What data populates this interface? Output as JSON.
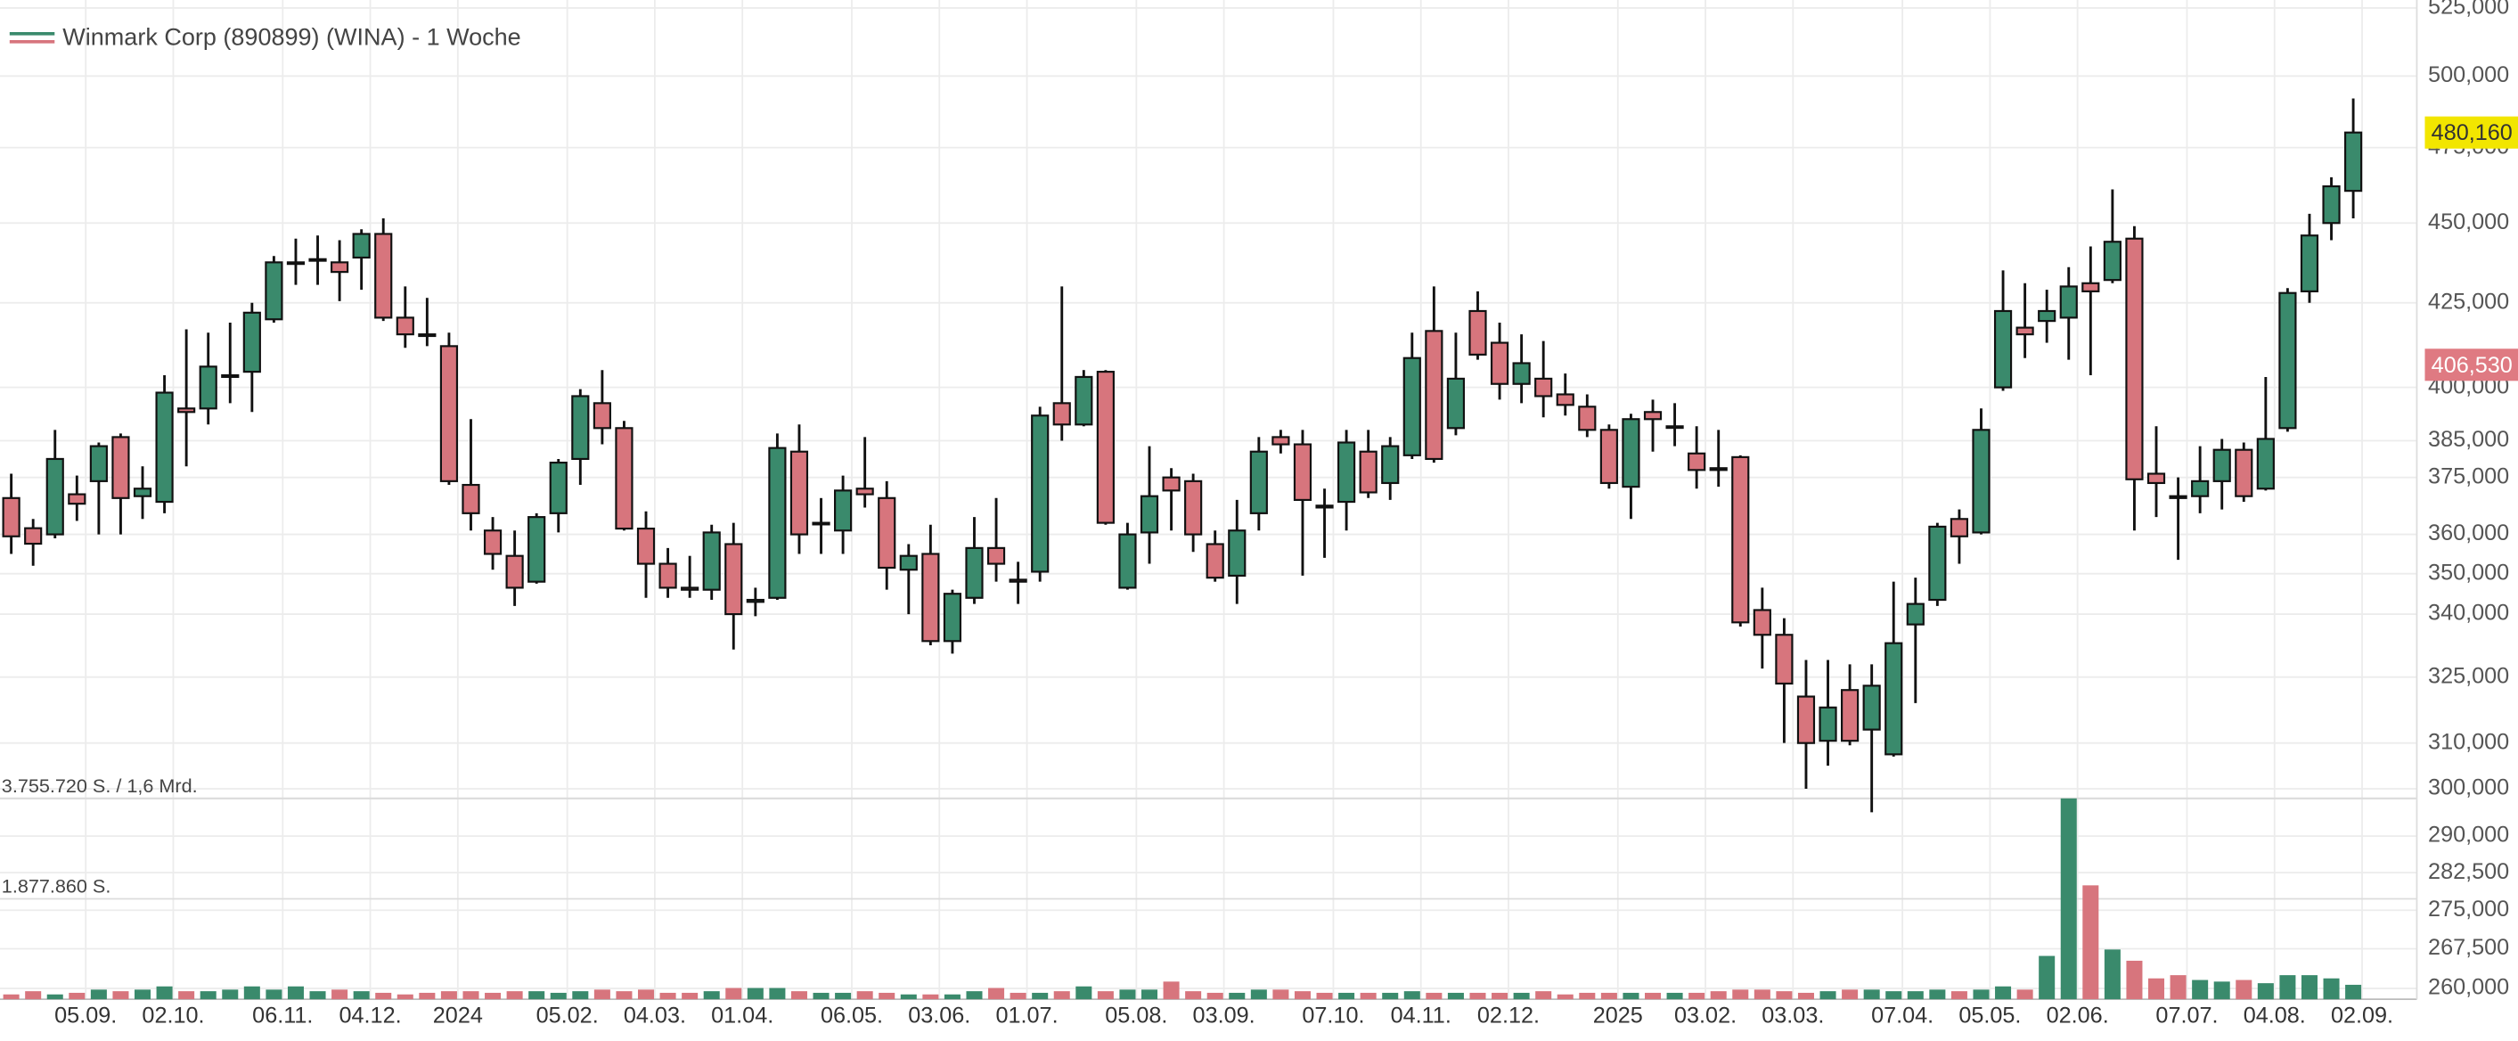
{
  "chart_data": {
    "type": "candlestick",
    "title": "Winmark Corp (890899) (WINA) - 1 Woche",
    "up_color": "#3a8a6c",
    "down_color": "#d7757d",
    "log_scale": true,
    "grid": true,
    "categories": [
      null,
      null,
      null,
      "05.09.",
      null,
      null,
      null,
      "02.10.",
      null,
      null,
      null,
      null,
      "06.11.",
      null,
      null,
      null,
      "04.12.",
      null,
      null,
      null,
      "2024",
      null,
      null,
      null,
      null,
      "05.02.",
      null,
      null,
      null,
      "04.03.",
      null,
      null,
      null,
      "01.04.",
      null,
      null,
      null,
      null,
      "06.05.",
      null,
      null,
      null,
      "03.06.",
      null,
      null,
      null,
      "01.07.",
      null,
      null,
      null,
      null,
      "05.08.",
      null,
      null,
      null,
      "03.09.",
      null,
      null,
      null,
      null,
      "07.10.",
      null,
      null,
      null,
      "04.11.",
      null,
      null,
      null,
      "02.12.",
      null,
      null,
      null,
      null,
      "2025",
      null,
      null,
      null,
      "03.02.",
      null,
      null,
      null,
      "03.03.",
      null,
      null,
      null,
      null,
      "07.04.",
      null,
      null,
      null,
      "05.05.",
      null,
      null,
      null,
      "02.06.",
      null,
      null,
      null,
      null,
      "07.07.",
      null,
      null,
      null,
      "04.08.",
      null,
      null,
      null,
      "02.09."
    ],
    "open": [
      369.5,
      361.6,
      360,
      370.5,
      374,
      386,
      370,
      368.5,
      394,
      394,
      403,
      404.5,
      420,
      437,
      438,
      437.5,
      439,
      446.5,
      420.5,
      415.5,
      412,
      373,
      361,
      354.5,
      348,
      365.5,
      380,
      395.5,
      388.5,
      361.5,
      352.5,
      346.5,
      346,
      357.5,
      343,
      344,
      382,
      363,
      361,
      372,
      369.5,
      351,
      355,
      333.5,
      344,
      356.5,
      348.5,
      350.5,
      395.5,
      389.5,
      404.5,
      346.5,
      360.5,
      375,
      374,
      357.5,
      349.5,
      365.5,
      386,
      384,
      367.5,
      368.5,
      382,
      373.5,
      381,
      416.5,
      388.5,
      422.5,
      413,
      401,
      402.5,
      398,
      394.5,
      388,
      372.5,
      393,
      389,
      381.5,
      377.5,
      380.5,
      341,
      335,
      320.5,
      310.5,
      322,
      313,
      307.5,
      337.5,
      343.5,
      364,
      360.5,
      400,
      417.5,
      419.5,
      420.5,
      431,
      432,
      445,
      376,
      370,
      370,
      374,
      382.5,
      372,
      388.5,
      428.5,
      450,
      460.5
    ],
    "high": [
      376,
      364,
      388,
      375.5,
      384.5,
      387,
      378,
      403.5,
      417,
      416,
      419,
      425,
      439.5,
      445,
      446,
      444.5,
      448,
      451.5,
      430,
      426.5,
      416,
      391,
      364.5,
      361,
      365.5,
      380,
      399.5,
      405,
      390.5,
      366,
      356.5,
      354.5,
      362.5,
      363,
      346.5,
      387,
      389.5,
      369.5,
      375.5,
      386,
      374,
      357.5,
      362.5,
      346,
      364.5,
      369.5,
      353,
      394.5,
      430,
      405,
      405,
      363,
      383.5,
      377.5,
      376,
      361,
      369,
      386,
      388,
      388,
      372,
      388,
      388,
      386,
      416,
      430,
      416,
      428.5,
      419,
      415.5,
      413.5,
      404,
      398,
      389.5,
      392.5,
      396.5,
      395.5,
      389,
      388,
      381,
      346.5,
      339,
      329,
      329,
      328,
      328,
      348,
      349,
      363,
      366.5,
      394,
      435,
      431,
      429,
      436,
      442.5,
      461,
      449,
      389,
      375,
      383.5,
      385.5,
      384.5,
      403,
      429.5,
      453,
      465,
      492
    ],
    "low": [
      355,
      352,
      359,
      363.5,
      360,
      360,
      364,
      365.5,
      378,
      389.5,
      395.5,
      393,
      419,
      430.5,
      430.5,
      425.5,
      429,
      419.5,
      411.5,
      412,
      373,
      361,
      351,
      342,
      347.5,
      360.5,
      373,
      384,
      361,
      344,
      344,
      344,
      343.5,
      331.5,
      339.5,
      343.5,
      355,
      355,
      355,
      367,
      346,
      340,
      332.5,
      330.5,
      342.5,
      348,
      342.5,
      348,
      385,
      389,
      362.5,
      346,
      352.5,
      361,
      355.5,
      348,
      342.5,
      361,
      381.5,
      349.5,
      354,
      361,
      369.5,
      369,
      380,
      379,
      386.5,
      408,
      396.5,
      395.5,
      391.5,
      392,
      386,
      372,
      364,
      382,
      383.5,
      372,
      372.5,
      337,
      327,
      310,
      300,
      305,
      309.5,
      295,
      307,
      319,
      342,
      352.5,
      360,
      399,
      408.5,
      413,
      408,
      403.5,
      431,
      361,
      364.5,
      353.5,
      365.5,
      366.5,
      368.5,
      371.5,
      387.5,
      425,
      444.5,
      451.5
    ],
    "close": [
      359.5,
      357.6,
      380,
      368,
      383.5,
      369.5,
      372,
      398.5,
      393,
      406,
      403.5,
      422,
      437.5,
      437.5,
      438.5,
      434.5,
      446.5,
      420.5,
      415.5,
      415,
      374,
      365.5,
      355,
      346.5,
      364.5,
      379,
      397.5,
      388.5,
      361.5,
      352.5,
      346.5,
      346,
      360.5,
      340,
      343.5,
      383,
      360,
      363,
      371.5,
      370.5,
      351.5,
      354.5,
      333.5,
      345,
      356.5,
      352.5,
      348,
      392,
      389.5,
      403,
      363,
      360,
      370,
      371.5,
      360,
      349,
      361,
      382,
      384,
      369,
      367,
      384.5,
      371,
      383.5,
      408.5,
      380,
      402.5,
      409.5,
      401,
      407,
      397.5,
      395,
      388,
      373.5,
      391,
      391,
      389,
      377,
      377,
      338,
      335,
      323.5,
      310,
      318,
      310.5,
      323,
      333,
      342.5,
      362,
      359.5,
      388,
      422.5,
      415.5,
      422.5,
      430,
      428.5,
      444,
      374.5,
      373.5,
      369.5,
      374,
      382.5,
      370,
      385.5,
      428,
      446,
      462,
      480.16
    ],
    "volume": [
      90000,
      150000,
      90000,
      120000,
      180000,
      150000,
      180000,
      240000,
      150000,
      150000,
      180000,
      240000,
      180000,
      240000,
      150000,
      180000,
      150000,
      120000,
      90000,
      120000,
      150000,
      150000,
      120000,
      150000,
      150000,
      120000,
      150000,
      180000,
      150000,
      180000,
      120000,
      120000,
      150000,
      210000,
      210000,
      210000,
      150000,
      120000,
      120000,
      150000,
      120000,
      90000,
      90000,
      90000,
      150000,
      210000,
      120000,
      120000,
      150000,
      240000,
      150000,
      180000,
      180000,
      330000,
      150000,
      120000,
      120000,
      180000,
      180000,
      150000,
      120000,
      120000,
      120000,
      120000,
      150000,
      120000,
      120000,
      120000,
      120000,
      120000,
      150000,
      90000,
      120000,
      120000,
      120000,
      120000,
      120000,
      120000,
      150000,
      180000,
      180000,
      150000,
      120000,
      150000,
      180000,
      180000,
      150000,
      150000,
      180000,
      150000,
      180000,
      240000,
      180000,
      810000,
      3755720,
      2130000,
      930000,
      720000,
      390000,
      450000,
      360000,
      330000,
      360000,
      300000,
      450000,
      450000,
      390000,
      270000
    ],
    "ylim": [
      258,
      528
    ],
    "yticks": [
      {
        "value": 525,
        "label": "525,000"
      },
      {
        "value": 500,
        "label": "500,000"
      },
      {
        "value": 475,
        "label": "475,000"
      },
      {
        "value": 450,
        "label": "450,000"
      },
      {
        "value": 425,
        "label": "425,000"
      },
      {
        "value": 400,
        "label": "400,000"
      },
      {
        "value": 385,
        "label": "385,000"
      },
      {
        "value": 375,
        "label": "375,000"
      },
      {
        "value": 360,
        "label": "360,000"
      },
      {
        "value": 350,
        "label": "350,000"
      },
      {
        "value": 340,
        "label": "340,000"
      },
      {
        "value": 325,
        "label": "325,000"
      },
      {
        "value": 310,
        "label": "310,000"
      },
      {
        "value": 300,
        "label": "300,000"
      },
      {
        "value": 290,
        "label": "290,000"
      },
      {
        "value": 282.5,
        "label": "282,500"
      },
      {
        "value": 275,
        "label": "275,000"
      },
      {
        "value": 267.5,
        "label": "267,500"
      },
      {
        "value": 260,
        "label": "260,000"
      }
    ],
    "vlim": [
      0,
      3755720
    ],
    "vticks": [
      {
        "value": 3755720,
        "label": "3.755.720 S. / 1,6 Mrd."
      },
      {
        "value": 1877860,
        "label": "1.877.860 S."
      }
    ],
    "price_labels": [
      {
        "value": 480.16,
        "label": "480,160",
        "color": "#f2e600"
      },
      {
        "value": 406.53,
        "label": "406,530",
        "color": "#df7a82"
      }
    ]
  }
}
